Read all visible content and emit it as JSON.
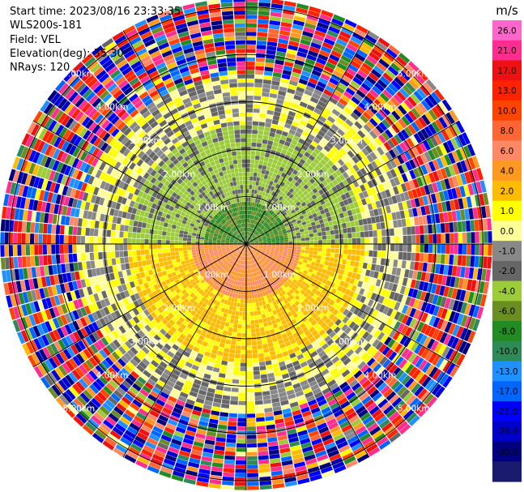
{
  "header": {
    "start_time": "Start time: 2023/08/16 23:33:35",
    "instrument": "WLS200s-181",
    "field": "Field: VEL",
    "elevation": "Elevation(deg): 35.30",
    "nrays": "NRays: 120"
  },
  "chart_data": {
    "type": "heatmap",
    "subtype": "radar-ppi",
    "field": "VEL",
    "unit": "m/s",
    "nrays": 120,
    "elevation_deg": 35.3,
    "range_rings_km": [
      1,
      2,
      3,
      4,
      5
    ],
    "range_ring_labels": [
      "1.00km",
      "2.00km",
      "3.00km",
      "4.00km",
      "5.00km"
    ],
    "max_range_km": 5.2,
    "grid": true,
    "colorbar": {
      "unit": "m/s",
      "tick_labels": [
        "26.0",
        "21.0",
        "17.0",
        "13.0",
        "10.0",
        "8.0",
        "6.0",
        "4.0",
        "2.0",
        "1.0",
        "0.0",
        "-1.0",
        "-2.0",
        "-4.0",
        "-6.0",
        "-8.0",
        "-10.0",
        "-13.0",
        "-17.0",
        "-21.0",
        "-26.0",
        "-30.0"
      ],
      "colors": [
        "#ff66cc",
        "#ff2d8f",
        "#ee1111",
        "#ff2200",
        "#ff4400",
        "#ff6633",
        "#ff8866",
        "#ff9922",
        "#ffbb00",
        "#ffff00",
        "#ffff99",
        "#888888",
        "#666666",
        "#9ccc3a",
        "#6b8e23",
        "#228b22",
        "#2e8b57",
        "#1e90ff",
        "#0066ff",
        "#0000ff",
        "#0000cd",
        "#000080",
        "#1a1a6e"
      ]
    },
    "regions": [
      {
        "range_km": [
          0.0,
          0.9
        ],
        "sector": "north",
        "velocity_range": [
          -8.0,
          -4.0
        ]
      },
      {
        "range_km": [
          0.0,
          1.2
        ],
        "sector": "south",
        "velocity_range": [
          4.0,
          8.0
        ]
      },
      {
        "range_km": [
          0.9,
          2.5
        ],
        "sector": "south",
        "velocity_range": [
          1.0,
          4.0
        ]
      },
      {
        "range_km": [
          0.9,
          2.5
        ],
        "sector": "north",
        "velocity_range": [
          -4.0,
          -1.0
        ]
      },
      {
        "range_km": [
          2.5,
          3.6
        ],
        "sector": "all",
        "velocity_range": [
          -2.0,
          2.0
        ]
      },
      {
        "range_km": [
          3.6,
          5.2
        ],
        "sector": "all",
        "velocity_range": [
          -30.0,
          26.0
        ]
      }
    ]
  }
}
